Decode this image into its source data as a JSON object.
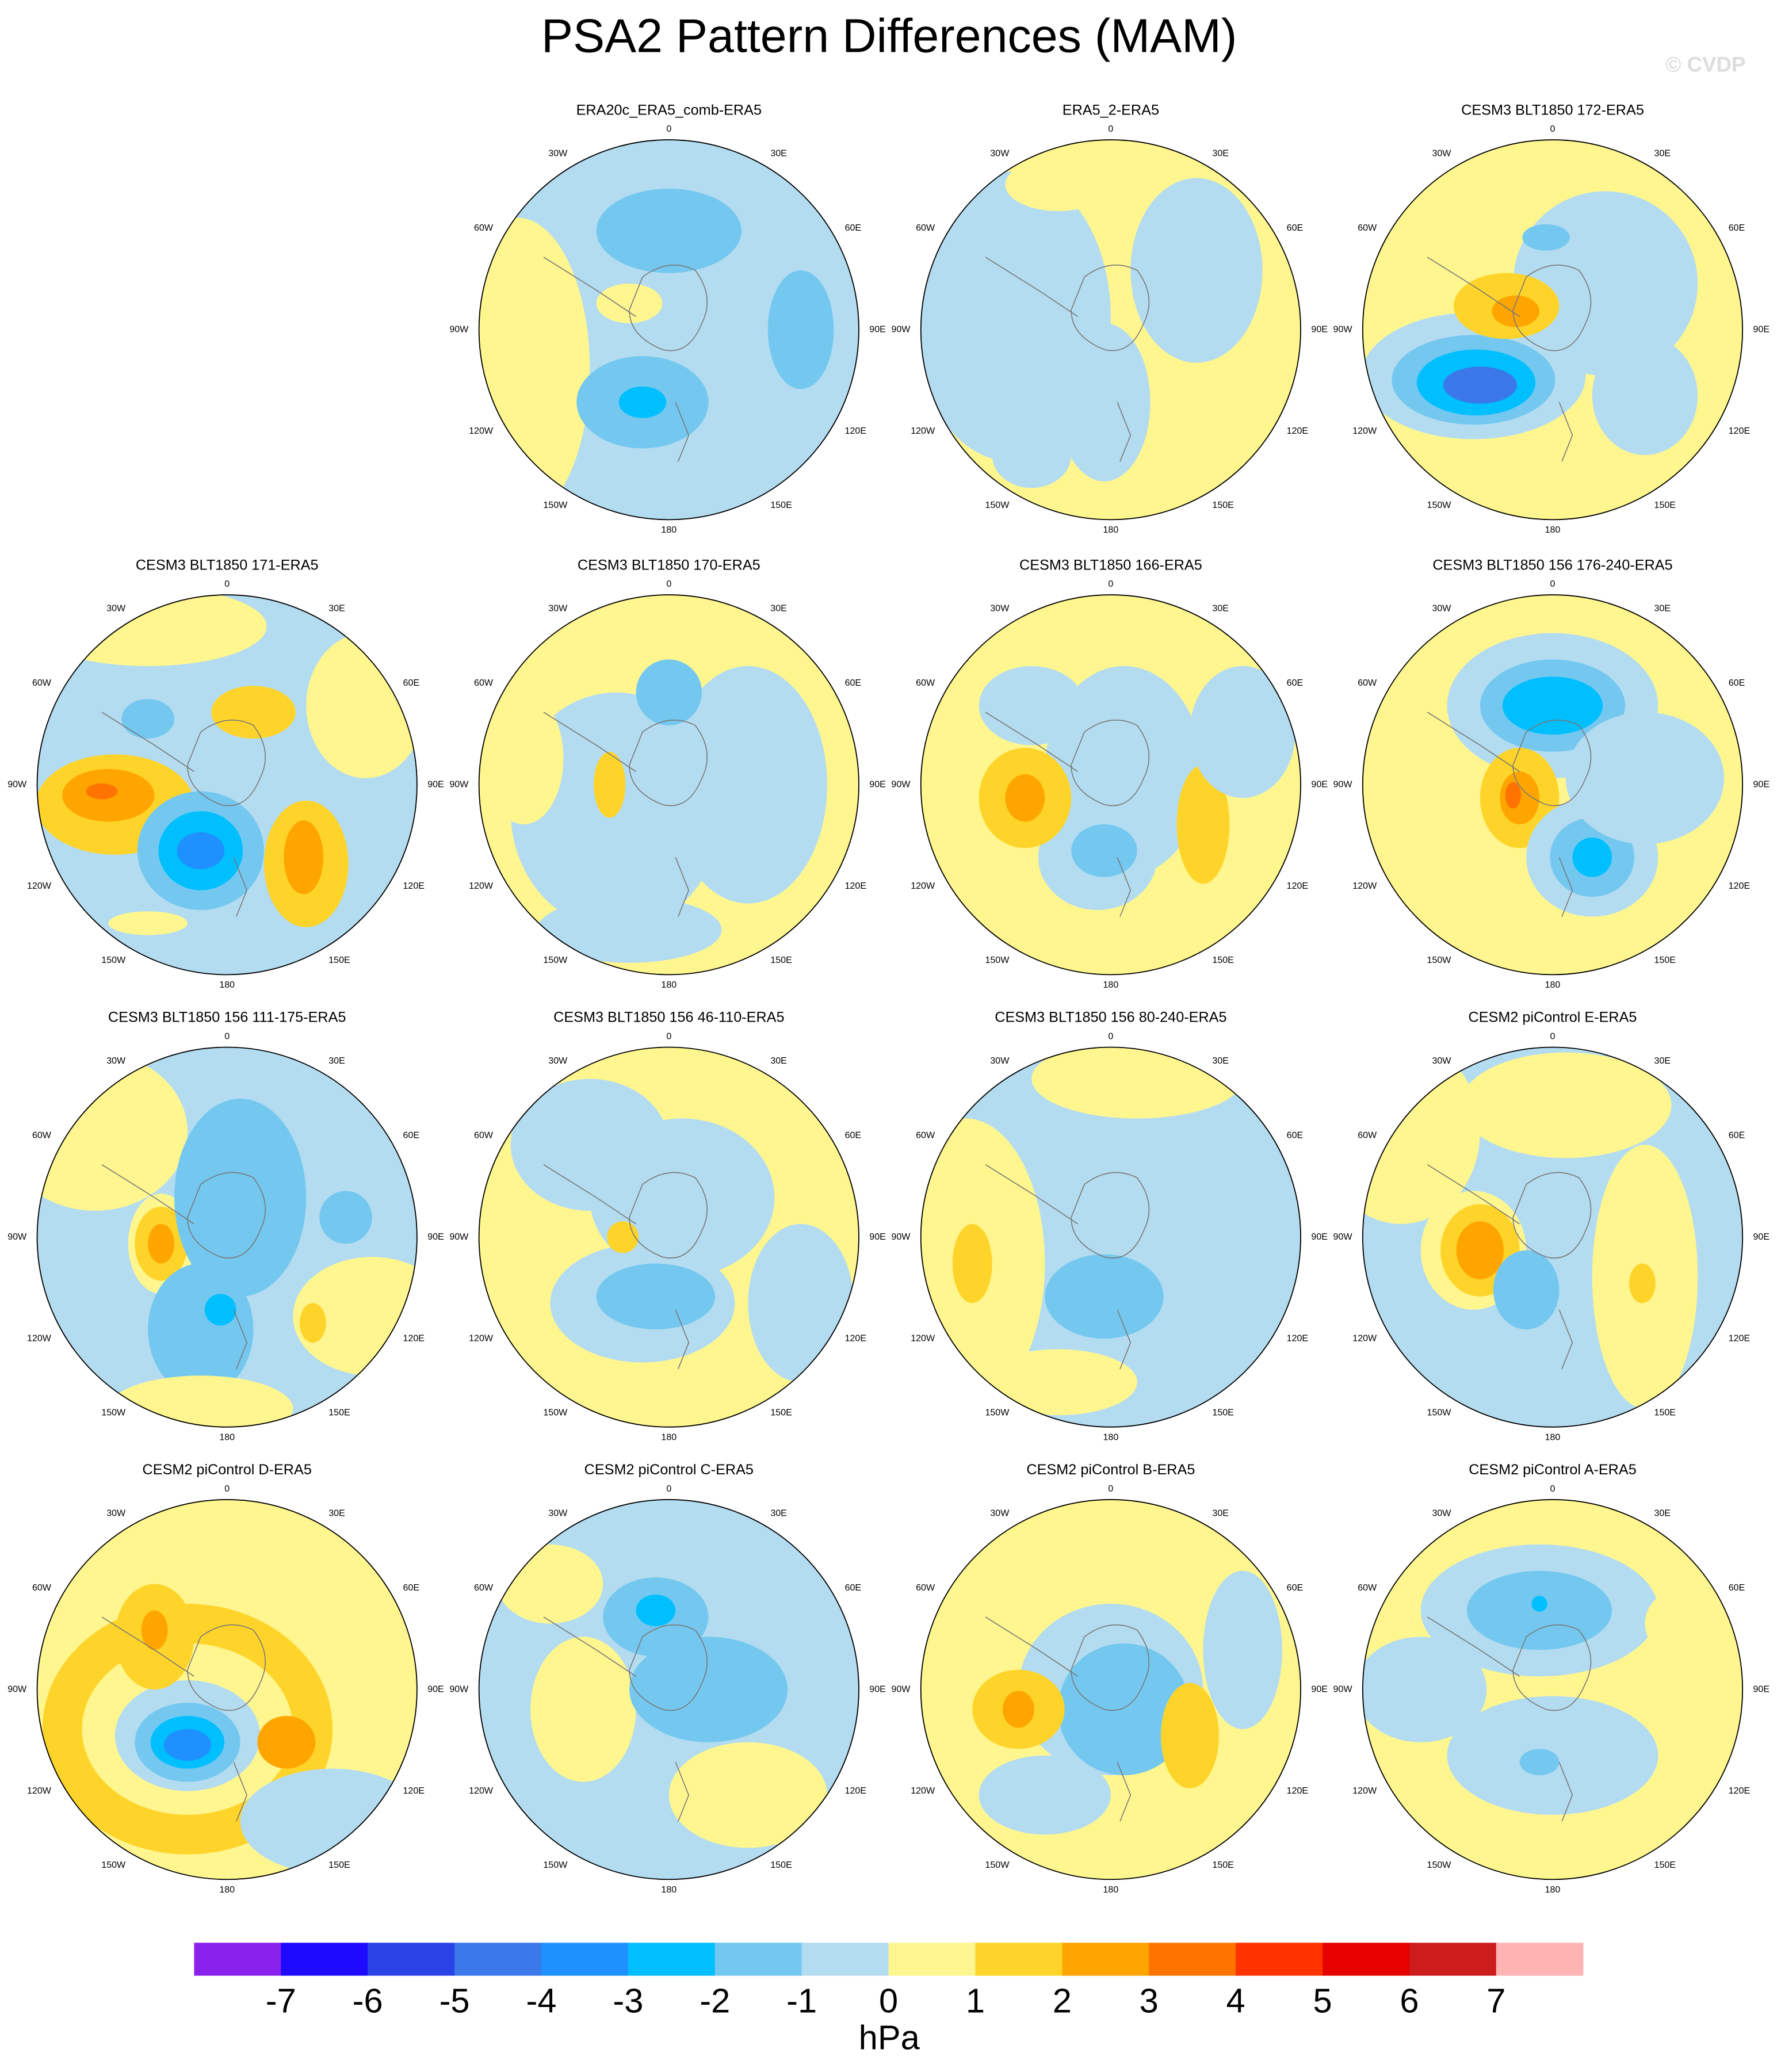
{
  "title": "PSA2 Pattern Differences (MAM)",
  "copyright": "© CVDP",
  "longitude_labels": [
    "0",
    "30E",
    "60E",
    "90E",
    "120E",
    "150E",
    "180",
    "150W",
    "120W",
    "90W",
    "60W",
    "30W"
  ],
  "panels": [
    {
      "title": "ERA20c_ERA5_comb-ERA5"
    },
    {
      "title": "ERA5_2-ERA5"
    },
    {
      "title": "CESM3 BLT1850 172-ERA5"
    },
    {
      "title": "CESM3 BLT1850 171-ERA5"
    },
    {
      "title": "CESM3 BLT1850 170-ERA5"
    },
    {
      "title": "CESM3 BLT1850 166-ERA5"
    },
    {
      "title": "CESM3 BLT1850 156 176-240-ERA5"
    },
    {
      "title": "CESM3 BLT1850 156 111-175-ERA5"
    },
    {
      "title": "CESM3 BLT1850 156 46-110-ERA5"
    },
    {
      "title": "CESM3 BLT1850 156 80-240-ERA5"
    },
    {
      "title": "CESM2 piControl E-ERA5"
    },
    {
      "title": "CESM2 piControl D-ERA5"
    },
    {
      "title": "CESM2 piControl C-ERA5"
    },
    {
      "title": "CESM2 piControl B-ERA5"
    },
    {
      "title": "CESM2 piControl A-ERA5"
    }
  ],
  "colorbar": {
    "levels": [
      -7,
      -6,
      -5,
      -4,
      -3,
      -2,
      -1,
      0,
      1,
      2,
      3,
      4,
      5,
      6,
      7
    ],
    "colors": [
      "#8a20ec",
      "#1e0aff",
      "#2a42e6",
      "#3a78ea",
      "#1e90ff",
      "#00bfff",
      "#74c8f0",
      "#b4dcf0",
      "#fff68f",
      "#ffd42a",
      "#ffa500",
      "#ff7300",
      "#ff3300",
      "#e60000",
      "#cc1c1c",
      "#ffb4b4"
    ],
    "unit": "hPa"
  }
}
